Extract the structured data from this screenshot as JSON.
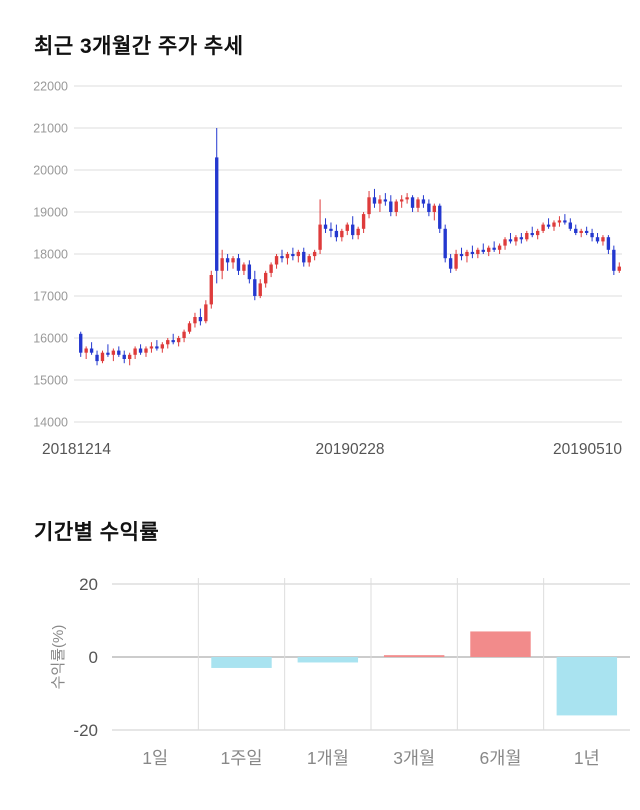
{
  "price_section": {
    "title": "최근 3개월간 주가 추세"
  },
  "returns_section": {
    "title": "기간별 수익률"
  },
  "chart_data": [
    {
      "type": "candlestick",
      "title": "최근 3개월간 주가 추세",
      "ylim": [
        14000,
        22000
      ],
      "y_ticks": [
        14000,
        15000,
        16000,
        17000,
        18000,
        19000,
        20000,
        21000,
        22000
      ],
      "x_labels": [
        "20181214",
        "20190228",
        "20190510"
      ],
      "grid": "horizontal",
      "up_color": "#de3b3b",
      "down_color": "#2438cf",
      "grid_color": "#dcdcdc",
      "ytick_color": "#999999",
      "xtick_color": "#555555",
      "candles": [
        [
          16100,
          16150,
          15550,
          15650
        ],
        [
          15650,
          15800,
          15500,
          15750
        ],
        [
          15750,
          15900,
          15600,
          15650
        ],
        [
          15600,
          15700,
          15350,
          15450
        ],
        [
          15450,
          15700,
          15400,
          15650
        ],
        [
          15650,
          15850,
          15550,
          15600
        ],
        [
          15600,
          15750,
          15450,
          15700
        ],
        [
          15700,
          15800,
          15550,
          15600
        ],
        [
          15600,
          15700,
          15400,
          15500
        ],
        [
          15500,
          15650,
          15350,
          15600
        ],
        [
          15600,
          15800,
          15500,
          15750
        ],
        [
          15750,
          15850,
          15600,
          15650
        ],
        [
          15650,
          15800,
          15550,
          15750
        ],
        [
          15750,
          15900,
          15650,
          15800
        ],
        [
          15800,
          15950,
          15700,
          15750
        ],
        [
          15750,
          15900,
          15650,
          15850
        ],
        [
          15850,
          16000,
          15750,
          15950
        ],
        [
          15950,
          16100,
          15850,
          15900
        ],
        [
          15900,
          16050,
          15800,
          16000
        ],
        [
          16000,
          16200,
          15900,
          16150
        ],
        [
          16150,
          16400,
          16100,
          16350
        ],
        [
          16350,
          16600,
          16250,
          16500
        ],
        [
          16500,
          16700,
          16300,
          16400
        ],
        [
          16400,
          16900,
          16350,
          16800
        ],
        [
          16800,
          17600,
          16700,
          17500
        ],
        [
          20300,
          21000,
          17300,
          17600
        ],
        [
          17600,
          18100,
          17400,
          17900
        ],
        [
          17900,
          18000,
          17600,
          17800
        ],
        [
          17800,
          17950,
          17650,
          17900
        ],
        [
          17900,
          18000,
          17500,
          17600
        ],
        [
          17600,
          17800,
          17500,
          17750
        ],
        [
          17750,
          17850,
          17300,
          17400
        ],
        [
          17400,
          17600,
          16900,
          17000
        ],
        [
          17000,
          17400,
          16950,
          17300
        ],
        [
          17300,
          17600,
          17200,
          17550
        ],
        [
          17550,
          17800,
          17450,
          17750
        ],
        [
          17750,
          18000,
          17650,
          17950
        ],
        [
          17950,
          18100,
          17800,
          17900
        ],
        [
          17900,
          18050,
          17750,
          18000
        ],
        [
          18000,
          18150,
          17850,
          17950
        ],
        [
          17950,
          18100,
          17800,
          18050
        ],
        [
          18050,
          18150,
          17700,
          17800
        ],
        [
          17800,
          18000,
          17700,
          17950
        ],
        [
          17950,
          18100,
          17850,
          18050
        ],
        [
          18100,
          19300,
          18000,
          18700
        ],
        [
          18700,
          18850,
          18500,
          18600
        ],
        [
          18600,
          18750,
          18400,
          18550
        ],
        [
          18550,
          18700,
          18300,
          18400
        ],
        [
          18400,
          18600,
          18300,
          18550
        ],
        [
          18550,
          18750,
          18450,
          18700
        ],
        [
          18700,
          18900,
          18350,
          18450
        ],
        [
          18450,
          18650,
          18350,
          18600
        ],
        [
          18600,
          19000,
          18500,
          18950
        ],
        [
          18950,
          19500,
          18850,
          19350
        ],
        [
          19350,
          19550,
          19100,
          19200
        ],
        [
          19200,
          19400,
          19000,
          19300
        ],
        [
          19300,
          19450,
          19150,
          19250
        ],
        [
          19250,
          19400,
          18900,
          19000
        ],
        [
          19000,
          19300,
          18900,
          19250
        ],
        [
          19250,
          19400,
          19100,
          19300
        ],
        [
          19300,
          19450,
          19200,
          19350
        ],
        [
          19350,
          19400,
          19000,
          19100
        ],
        [
          19100,
          19350,
          19000,
          19300
        ],
        [
          19300,
          19400,
          19100,
          19200
        ],
        [
          19200,
          19300,
          18900,
          19000
        ],
        [
          19000,
          19200,
          18800,
          19150
        ],
        [
          19150,
          19200,
          18500,
          18600
        ],
        [
          18600,
          18700,
          17800,
          17900
        ],
        [
          17900,
          18000,
          17550,
          17650
        ],
        [
          17650,
          18100,
          17600,
          18000
        ],
        [
          18000,
          18150,
          17850,
          17950
        ],
        [
          17950,
          18100,
          17800,
          18050
        ],
        [
          18050,
          18200,
          17900,
          18000
        ],
        [
          18000,
          18150,
          17900,
          18100
        ],
        [
          18100,
          18250,
          18000,
          18050
        ],
        [
          18050,
          18200,
          17950,
          18150
        ],
        [
          18150,
          18300,
          18050,
          18100
        ],
        [
          18100,
          18250,
          18000,
          18200
        ],
        [
          18200,
          18400,
          18100,
          18350
        ],
        [
          18350,
          18500,
          18250,
          18300
        ],
        [
          18300,
          18450,
          18200,
          18400
        ],
        [
          18400,
          18500,
          18250,
          18350
        ],
        [
          18350,
          18550,
          18300,
          18500
        ],
        [
          18500,
          18650,
          18400,
          18450
        ],
        [
          18450,
          18600,
          18350,
          18550
        ],
        [
          18550,
          18750,
          18500,
          18700
        ],
        [
          18700,
          18850,
          18600,
          18650
        ],
        [
          18650,
          18800,
          18550,
          18750
        ],
        [
          18750,
          18900,
          18650,
          18800
        ],
        [
          18800,
          18950,
          18700,
          18750
        ],
        [
          18750,
          18850,
          18550,
          18600
        ],
        [
          18600,
          18700,
          18450,
          18500
        ],
        [
          18500,
          18600,
          18400,
          18550
        ],
        [
          18550,
          18650,
          18450,
          18500
        ],
        [
          18500,
          18600,
          18300,
          18400
        ],
        [
          18400,
          18500,
          18250,
          18300
        ],
        [
          18300,
          18450,
          18200,
          18400
        ],
        [
          18400,
          18450,
          18000,
          18100
        ],
        [
          18100,
          18200,
          17500,
          17600
        ],
        [
          17600,
          17800,
          17550,
          17700
        ]
      ]
    },
    {
      "type": "bar",
      "title": "기간별 수익률",
      "ylabel": "수익률(%)",
      "ylim": [
        -20,
        20
      ],
      "y_ticks": [
        20,
        0,
        -20
      ],
      "categories": [
        "1일",
        "1주일",
        "1개월",
        "3개월",
        "6개월",
        "1년"
      ],
      "values": [
        0,
        -3,
        -1.5,
        0.5,
        7,
        -16
      ],
      "pos_color": "#f28b8b",
      "neg_color": "#a9e3f0",
      "grid_color": "#cccccc",
      "zero_line_color": "#999999",
      "sep_color": "#dddddd",
      "tick_color": "#555555",
      "label_color": "#888888"
    }
  ]
}
